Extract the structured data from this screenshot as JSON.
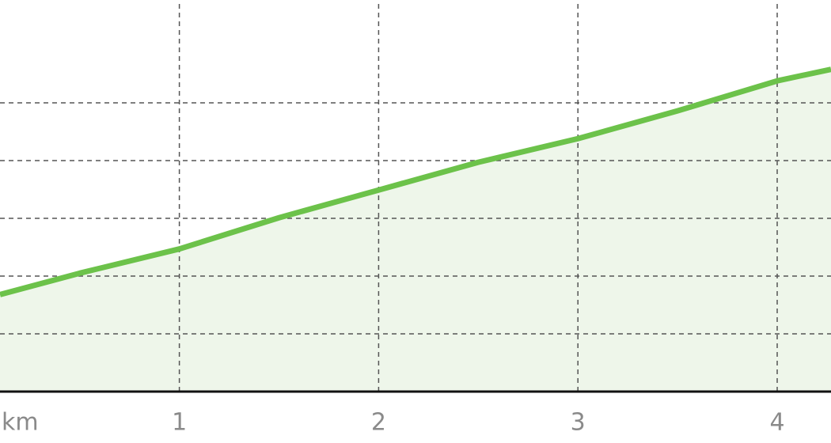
{
  "chart_data": {
    "type": "area",
    "x_label": "km",
    "x": [
      0.1,
      0.5,
      1,
      1.5,
      2,
      2.5,
      3,
      3.5,
      4,
      4.27
    ],
    "values": [
      1.68,
      2.05,
      2.47,
      3.01,
      3.49,
      3.97,
      4.38,
      4.86,
      5.38,
      5.58
    ],
    "color": "#6cc24a",
    "fill": "#eef6ea",
    "xlim": [
      0.1,
      4.27
    ],
    "xticks": [
      1,
      2,
      3,
      4
    ],
    "ylim": [
      0,
      6.78
    ],
    "yticks": [
      0,
      1,
      2,
      3,
      4,
      5
    ],
    "grid": true
  }
}
